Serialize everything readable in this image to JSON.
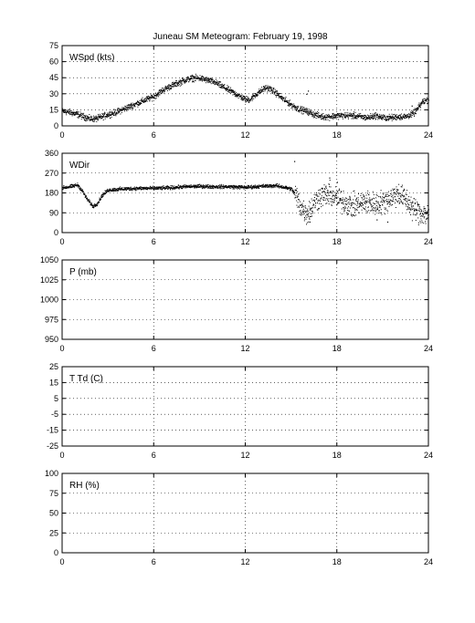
{
  "figure": {
    "title": "Juneau SM Meteogram:  February 19, 1998"
  },
  "chart_data": [
    {
      "type": "scatter",
      "title": "",
      "panel_label": "WSpd (kts)",
      "xlim": [
        0,
        24
      ],
      "x_ticks": [
        0,
        6,
        12,
        18,
        24
      ],
      "ylim": [
        0,
        75
      ],
      "y_ticks": [
        0,
        15,
        30,
        45,
        60,
        75
      ],
      "grid": true,
      "profile": [
        [
          0,
          14
        ],
        [
          0.5,
          13
        ],
        [
          1,
          11
        ],
        [
          1.4,
          9
        ],
        [
          1.8,
          7
        ],
        [
          2.2,
          7
        ],
        [
          2.6,
          9
        ],
        [
          3,
          11
        ],
        [
          3.5,
          13
        ],
        [
          4,
          16
        ],
        [
          4.5,
          19
        ],
        [
          5,
          22
        ],
        [
          5.5,
          25
        ],
        [
          6,
          28
        ],
        [
          6.5,
          33
        ],
        [
          7,
          37
        ],
        [
          7.5,
          40
        ],
        [
          8,
          43
        ],
        [
          8.5,
          45
        ],
        [
          9,
          45
        ],
        [
          9.5,
          43
        ],
        [
          10,
          41
        ],
        [
          10.5,
          37
        ],
        [
          11,
          33
        ],
        [
          11.5,
          29
        ],
        [
          12,
          25
        ],
        [
          12.3,
          25
        ],
        [
          12.6,
          29
        ],
        [
          13,
          33
        ],
        [
          13.3,
          36
        ],
        [
          13.6,
          35
        ],
        [
          14,
          31
        ],
        [
          14.5,
          25
        ],
        [
          15,
          20
        ],
        [
          15.5,
          16
        ],
        [
          16,
          14
        ],
        [
          16.5,
          11
        ],
        [
          17,
          9
        ],
        [
          17.5,
          9
        ],
        [
          18,
          10
        ],
        [
          18.5,
          10
        ],
        [
          19,
          10
        ],
        [
          19.5,
          9
        ],
        [
          20,
          8
        ],
        [
          20.5,
          10
        ],
        [
          21,
          8
        ],
        [
          21.5,
          8
        ],
        [
          22,
          9
        ],
        [
          22.5,
          9
        ],
        [
          23,
          12
        ],
        [
          23.3,
          17
        ],
        [
          23.6,
          23
        ],
        [
          24,
          25
        ]
      ],
      "outliers": [
        [
          16.0,
          30
        ],
        [
          16.1,
          33
        ],
        [
          22.9,
          19
        ]
      ],
      "scatter": 2.5,
      "density": 2000
    },
    {
      "type": "scatter",
      "title": "",
      "panel_label": "WDir",
      "xlim": [
        0,
        24
      ],
      "x_ticks": [
        0,
        6,
        12,
        18,
        24
      ],
      "ylim": [
        0,
        360
      ],
      "y_ticks": [
        0,
        90,
        180,
        270,
        360
      ],
      "grid": true,
      "profile": [
        [
          0,
          205
        ],
        [
          0.5,
          210
        ],
        [
          1,
          218
        ],
        [
          1.3,
          190
        ],
        [
          1.6,
          155
        ],
        [
          2,
          120
        ],
        [
          2.3,
          135
        ],
        [
          2.6,
          170
        ],
        [
          3,
          195
        ],
        [
          4,
          200
        ],
        [
          5,
          203
        ],
        [
          6,
          203
        ],
        [
          7,
          205
        ],
        [
          8,
          210
        ],
        [
          9,
          212
        ],
        [
          10,
          210
        ],
        [
          11,
          210
        ],
        [
          12,
          207
        ],
        [
          13,
          212
        ],
        [
          14,
          215
        ],
        [
          15,
          200
        ],
        [
          15.3,
          170
        ],
        [
          15.6,
          120
        ],
        [
          16,
          90
        ],
        [
          16.3,
          110
        ],
        [
          16.6,
          150
        ],
        [
          17,
          170
        ],
        [
          17.5,
          175
        ],
        [
          18,
          155
        ],
        [
          18.5,
          140
        ],
        [
          19,
          120
        ],
        [
          19.5,
          135
        ],
        [
          20,
          140
        ],
        [
          20.5,
          130
        ],
        [
          21,
          140
        ],
        [
          21.5,
          160
        ],
        [
          22,
          180
        ],
        [
          22.5,
          150
        ],
        [
          23,
          110
        ],
        [
          23.5,
          90
        ],
        [
          24,
          85
        ]
      ],
      "outliers": [
        [
          15.2,
          325
        ],
        [
          17.5,
          250
        ],
        [
          18.0,
          230
        ],
        [
          20.6,
          60
        ],
        [
          21.3,
          50
        ],
        [
          16.2,
          50
        ]
      ],
      "scatter": 7,
      "noisy_from": 15.2,
      "noisy_scatter": 45,
      "density": 2000
    },
    {
      "type": "scatter",
      "title": "",
      "panel_label": "P (mb)",
      "xlim": [
        0,
        24
      ],
      "x_ticks": [
        0,
        6,
        12,
        18,
        24
      ],
      "ylim": [
        950,
        1050
      ],
      "y_ticks": [
        950,
        975,
        1000,
        1025,
        1050
      ],
      "grid": true,
      "profile": [],
      "outliers": []
    },
    {
      "type": "scatter",
      "title": "",
      "panel_label": "T Td (C)",
      "xlim": [
        0,
        24
      ],
      "x_ticks": [
        0,
        6,
        12,
        18,
        24
      ],
      "ylim": [
        -25,
        25
      ],
      "y_ticks": [
        -25,
        -15,
        -5,
        5,
        15,
        25
      ],
      "extra_tick_labels": [
        "-25",
        "-15",
        "-5",
        "5",
        "15",
        "25"
      ],
      "grid": true,
      "profile": [],
      "outliers": []
    },
    {
      "type": "scatter",
      "title": "",
      "panel_label": "RH (%)",
      "xlim": [
        0,
        24
      ],
      "x_ticks": [
        0,
        6,
        12,
        18,
        24
      ],
      "ylim": [
        0,
        100
      ],
      "y_ticks": [
        0,
        25,
        50,
        75,
        100
      ],
      "grid": true,
      "profile": [],
      "outliers": []
    }
  ]
}
